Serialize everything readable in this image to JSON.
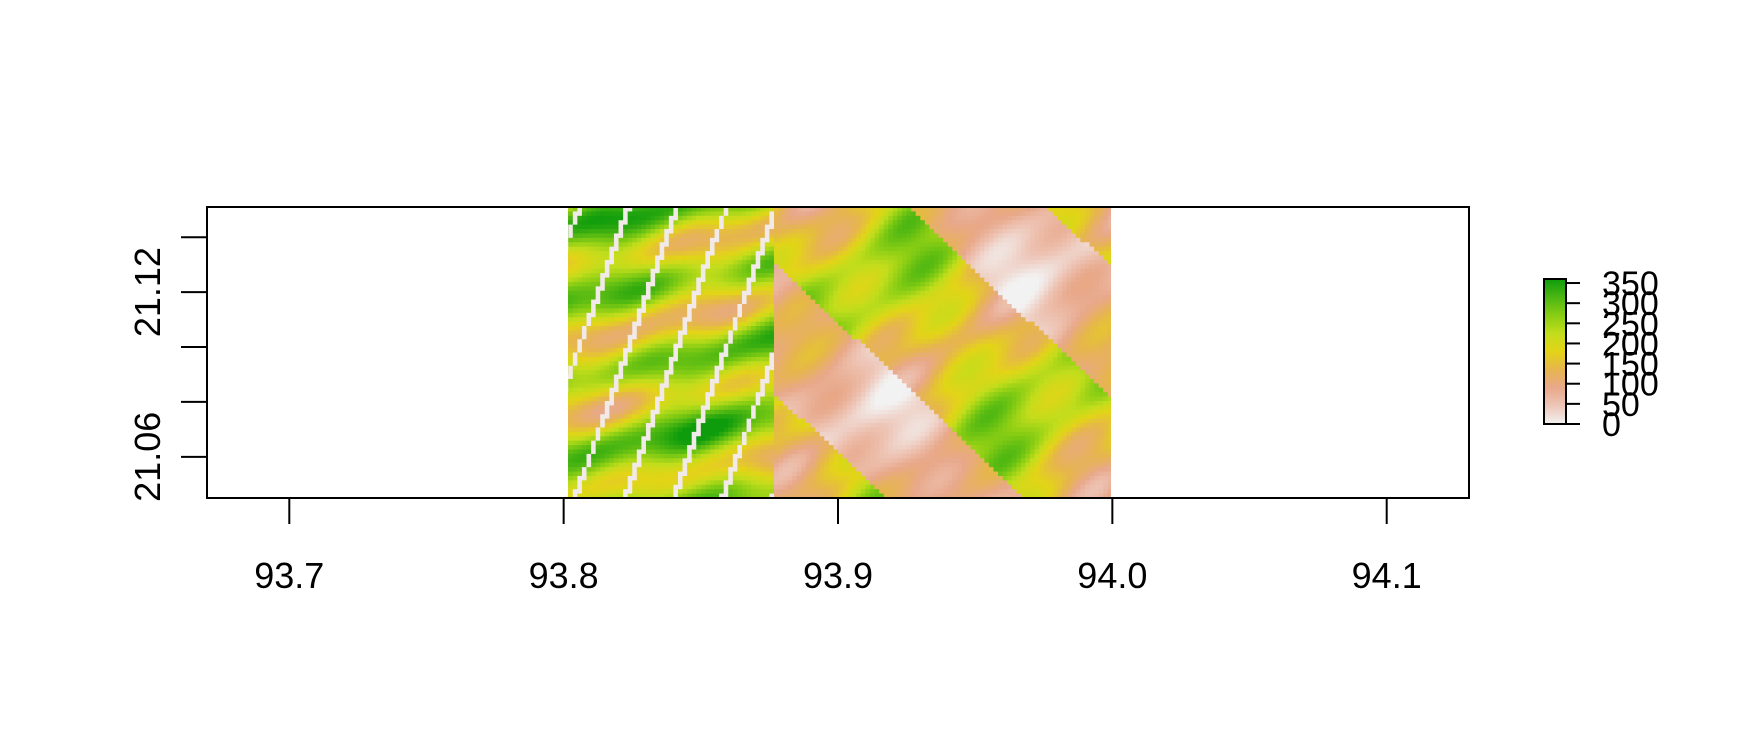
{
  "chart_data": {
    "type": "heatmap",
    "title": "",
    "xlabel": "",
    "ylabel": "",
    "xlim": [
      93.67,
      94.13
    ],
    "ylim": [
      21.045,
      21.151
    ],
    "x_ticks": [
      {
        "value": 93.7,
        "label": "93.7"
      },
      {
        "value": 93.8,
        "label": "93.8"
      },
      {
        "value": 93.9,
        "label": "93.9"
      },
      {
        "value": 94.0,
        "label": "94.0"
      },
      {
        "value": 94.1,
        "label": "94.1"
      }
    ],
    "y_ticks": [
      {
        "value": 21.14,
        "label": ""
      },
      {
        "value": 21.12,
        "label": "21.12"
      },
      {
        "value": 21.1,
        "label": ""
      },
      {
        "value": 21.08,
        "label": ""
      },
      {
        "value": 21.06,
        "label": "21.06"
      },
      {
        "value": 21.04,
        "label": ""
      }
    ],
    "raster_extent": {
      "xmin": 93.8,
      "xmax": 94.0,
      "ymin": 21.045,
      "ymax": 21.151
    },
    "value_range": [
      0,
      360
    ],
    "palette": [
      "#f2f2f2",
      "#eec6b8",
      "#e8a88a",
      "#e6b54e",
      "#e3d417",
      "#c2dd1c",
      "#88cd14",
      "#4cb612",
      "#0e9c0c"
    ],
    "legend": {
      "placement": "right",
      "ticks": [
        {
          "value": 0,
          "label": "0"
        },
        {
          "value": 50,
          "label": "50"
        },
        {
          "value": 100,
          "label": "100"
        },
        {
          "value": 150,
          "label": "150"
        },
        {
          "value": 200,
          "label": "200"
        },
        {
          "value": 250,
          "label": "250"
        },
        {
          "value": 300,
          "label": "300"
        },
        {
          "value": 350,
          "label": "350"
        }
      ]
    },
    "grid": false
  }
}
